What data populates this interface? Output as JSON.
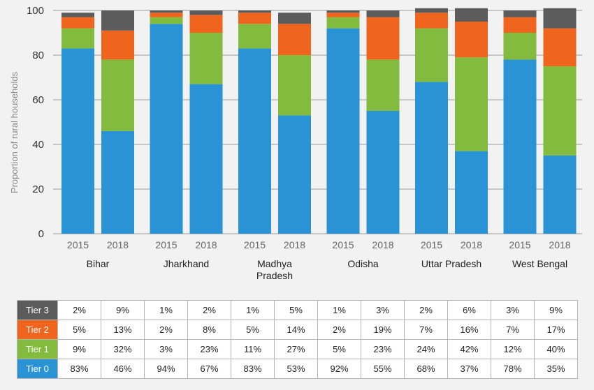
{
  "colors": {
    "tier0": "#2a93d5",
    "tier1": "#83bb3e",
    "tier2": "#f0651d",
    "tier3": "#5c5c5c",
    "grid": "#9a9a9a",
    "background": "#f2f2f2"
  },
  "chart_data": {
    "type": "bar",
    "stacked": true,
    "ylabel": "Proportion of rural households",
    "ylim": [
      0,
      100
    ],
    "yticks": [
      0,
      20,
      40,
      60,
      80,
      100
    ],
    "grid": true,
    "groups": [
      {
        "name": [
          "Bihar"
        ],
        "years": [
          "2015",
          "2018"
        ]
      },
      {
        "name": [
          "Jharkhand"
        ],
        "years": [
          "2015",
          "2018"
        ]
      },
      {
        "name": [
          "Madhya",
          "Pradesh"
        ],
        "years": [
          "2015",
          "2018"
        ]
      },
      {
        "name": [
          "Odisha"
        ],
        "years": [
          "2015",
          "2018"
        ]
      },
      {
        "name": [
          "Uttar Pradesh"
        ],
        "years": [
          "2015",
          "2018"
        ]
      },
      {
        "name": [
          "West Bengal"
        ],
        "years": [
          "2015",
          "2018"
        ]
      }
    ],
    "series": [
      {
        "name": "Tier 0",
        "color_key": "tier0",
        "values": [
          83,
          46,
          94,
          67,
          83,
          53,
          92,
          55,
          68,
          37,
          78,
          35
        ]
      },
      {
        "name": "Tier 1",
        "color_key": "tier1",
        "values": [
          9,
          32,
          3,
          23,
          11,
          27,
          5,
          23,
          24,
          42,
          12,
          40
        ]
      },
      {
        "name": "Tier 2",
        "color_key": "tier2",
        "values": [
          5,
          13,
          2,
          8,
          5,
          14,
          2,
          19,
          7,
          16,
          7,
          17
        ]
      },
      {
        "name": "Tier 3",
        "color_key": "tier3",
        "values": [
          2,
          9,
          1,
          2,
          1,
          5,
          1,
          3,
          2,
          6,
          3,
          9
        ]
      }
    ]
  },
  "table": {
    "rows": [
      {
        "tier": "Tier 3",
        "color_key": "tier3",
        "cells": [
          "2%",
          "9%",
          "1%",
          "2%",
          "1%",
          "5%",
          "1%",
          "3%",
          "2%",
          "6%",
          "3%",
          "9%"
        ]
      },
      {
        "tier": "Tier 2",
        "color_key": "tier2",
        "cells": [
          "5%",
          "13%",
          "2%",
          "8%",
          "5%",
          "14%",
          "2%",
          "19%",
          "7%",
          "16%",
          "7%",
          "17%"
        ]
      },
      {
        "tier": "Tier 1",
        "color_key": "tier1",
        "cells": [
          "9%",
          "32%",
          "3%",
          "23%",
          "11%",
          "27%",
          "5%",
          "23%",
          "24%",
          "42%",
          "12%",
          "40%"
        ]
      },
      {
        "tier": "Tier 0",
        "color_key": "tier0",
        "cells": [
          "83%",
          "46%",
          "94%",
          "67%",
          "83%",
          "53%",
          "92%",
          "55%",
          "68%",
          "37%",
          "78%",
          "35%"
        ]
      }
    ]
  }
}
